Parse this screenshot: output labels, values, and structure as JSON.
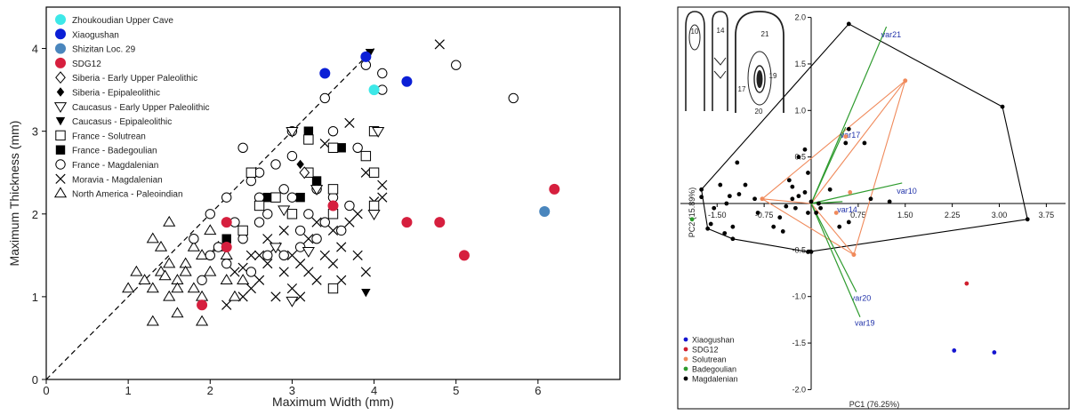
{
  "chart_data": [
    {
      "type": "scatter",
      "xlabel": "Maximum Width (mm)",
      "ylabel": "Maximum Thickness (mm)",
      "xlim": [
        0,
        7
      ],
      "ylim": [
        0,
        4.5
      ],
      "xticks": [
        0,
        1,
        2,
        3,
        4,
        5,
        6
      ],
      "yticks": [
        0,
        1,
        2,
        3,
        4
      ],
      "grid": false,
      "legend_position": "top-left",
      "reference_line": {
        "style": "dashed",
        "x": [
          0,
          4
        ],
        "y": [
          0,
          4
        ]
      },
      "series": [
        {
          "name": "Zhoukoudian Upper Cave",
          "marker": "circle-filled",
          "color": "#3de8e8",
          "points": [
            [
              4.0,
              3.5
            ]
          ]
        },
        {
          "name": "Xiaogushan",
          "marker": "circle-filled",
          "color": "#0b1fd6",
          "points": [
            [
              3.4,
              3.7
            ],
            [
              3.9,
              3.9
            ],
            [
              4.4,
              3.6
            ]
          ]
        },
        {
          "name": "Shizitan Loc. 29",
          "marker": "circle-filled",
          "color": "#4a86bd",
          "points": [
            [
              6.08,
              2.03
            ]
          ]
        },
        {
          "name": "SDG12",
          "marker": "circle-filled",
          "color": "#d61f3e",
          "points": [
            [
              1.9,
              0.9
            ],
            [
              2.2,
              1.9
            ],
            [
              2.2,
              1.6
            ],
            [
              3.5,
              2.1
            ],
            [
              4.4,
              1.9
            ],
            [
              4.8,
              1.9
            ],
            [
              5.1,
              1.5
            ],
            [
              6.2,
              2.3
            ]
          ]
        },
        {
          "name": "Siberia - Early Upper Paleolithic",
          "marker": "diamond-open",
          "color": "#000000",
          "points": [
            [
              3.15,
              2.5
            ]
          ]
        },
        {
          "name": "Siberia - Epipaleolithic",
          "marker": "diamond-filled",
          "color": "#000000",
          "points": [
            [
              3.1,
              2.6
            ]
          ]
        },
        {
          "name": "Caucasus - Early Upper Paleolithic",
          "marker": "triangle-down-open",
          "color": "#000000",
          "points": [
            [
              3.0,
              3.0
            ],
            [
              3.0,
              0.95
            ],
            [
              2.8,
              1.6
            ],
            [
              2.9,
              2.05
            ],
            [
              3.2,
              1.55
            ],
            [
              4.0,
              2.0
            ],
            [
              4.05,
              3.0
            ],
            [
              3.3,
              2.3
            ]
          ]
        },
        {
          "name": "Caucasus - Epipaleolithic",
          "marker": "triangle-down-filled",
          "color": "#000000",
          "points": [
            [
              3.95,
              3.95
            ],
            [
              3.9,
              1.05
            ]
          ]
        },
        {
          "name": "France - Solutrean",
          "marker": "square-open",
          "color": "#000000",
          "points": [
            [
              2.5,
              2.5
            ],
            [
              2.8,
              2.2
            ],
            [
              3.0,
              2.0
            ],
            [
              3.2,
              2.5
            ],
            [
              3.5,
              2.3
            ],
            [
              3.5,
              2.0
            ],
            [
              3.5,
              1.1
            ],
            [
              4.0,
              2.5
            ],
            [
              4.0,
              2.1
            ],
            [
              3.9,
              2.7
            ],
            [
              2.6,
              2.1
            ],
            [
              2.4,
              1.8
            ],
            [
              3.2,
              2.9
            ],
            [
              3.5,
              2.8
            ],
            [
              4.0,
              3.0
            ]
          ]
        },
        {
          "name": "France - Badegoulian",
          "marker": "square-filled",
          "color": "#000000",
          "points": [
            [
              2.2,
              1.7
            ],
            [
              2.7,
              2.2
            ],
            [
              3.1,
              2.2
            ],
            [
              3.2,
              3.0
            ],
            [
              3.3,
              2.4
            ],
            [
              3.6,
              2.8
            ],
            [
              3.5,
              2.0
            ]
          ]
        },
        {
          "name": "France - Magdalenian",
          "marker": "circle-open",
          "color": "#000000",
          "points": [
            [
              1.8,
              1.7
            ],
            [
              2.0,
              2.0
            ],
            [
              2.1,
              1.6
            ],
            [
              2.2,
              2.2
            ],
            [
              2.3,
              1.9
            ],
            [
              2.4,
              1.7
            ],
            [
              2.5,
              2.4
            ],
            [
              2.6,
              2.2
            ],
            [
              2.7,
              2.0
            ],
            [
              2.8,
              2.6
            ],
            [
              2.9,
              1.5
            ],
            [
              3.0,
              2.2
            ],
            [
              3.1,
              1.8
            ],
            [
              3.2,
              2.0
            ],
            [
              3.3,
              1.7
            ],
            [
              3.4,
              1.9
            ],
            [
              3.5,
              2.2
            ],
            [
              3.6,
              1.8
            ],
            [
              3.7,
              2.1
            ],
            [
              2.4,
              2.8
            ],
            [
              2.6,
              2.5
            ],
            [
              2.7,
              1.5
            ],
            [
              2.9,
              2.3
            ],
            [
              3.0,
              3.0
            ],
            [
              3.1,
              1.6
            ],
            [
              3.3,
              2.3
            ],
            [
              3.5,
              3.0
            ],
            [
              3.9,
              3.8
            ],
            [
              4.1,
              3.7
            ],
            [
              4.1,
              3.5
            ],
            [
              5.0,
              3.8
            ],
            [
              5.7,
              3.4
            ],
            [
              3.4,
              3.4
            ],
            [
              3.0,
              2.7
            ],
            [
              2.2,
              1.4
            ],
            [
              2.5,
              1.3
            ],
            [
              2.0,
              1.5
            ],
            [
              1.9,
              1.2
            ],
            [
              3.8,
              2.8
            ],
            [
              2.6,
              1.9
            ]
          ]
        },
        {
          "name": "Moravia - Magdalenian",
          "marker": "x",
          "color": "#000000",
          "points": [
            [
              2.3,
              1.3
            ],
            [
              2.5,
              1.5
            ],
            [
              2.6,
              1.2
            ],
            [
              2.7,
              1.4
            ],
            [
              2.8,
              1.6
            ],
            [
              2.9,
              1.3
            ],
            [
              3.0,
              1.5
            ],
            [
              3.1,
              1.4
            ],
            [
              3.2,
              1.7
            ],
            [
              3.3,
              1.2
            ],
            [
              3.4,
              1.5
            ],
            [
              3.5,
              1.8
            ],
            [
              3.6,
              1.6
            ],
            [
              3.7,
              1.9
            ],
            [
              3.8,
              2.0
            ],
            [
              3.4,
              2.85
            ],
            [
              3.7,
              3.1
            ],
            [
              4.1,
              2.35
            ],
            [
              4.0,
              2.15
            ],
            [
              4.1,
              2.2
            ],
            [
              3.9,
              1.3
            ],
            [
              4.8,
              4.05
            ],
            [
              2.4,
              1.0
            ],
            [
              2.2,
              0.9
            ],
            [
              2.5,
              1.1
            ],
            [
              2.8,
              1.0
            ],
            [
              3.0,
              1.1
            ],
            [
              3.2,
              1.3
            ],
            [
              3.5,
              1.4
            ],
            [
              3.6,
              1.2
            ],
            [
              2.6,
              1.5
            ],
            [
              2.7,
              1.7
            ],
            [
              2.9,
              1.8
            ],
            [
              3.3,
              1.9
            ],
            [
              3.8,
              1.5
            ],
            [
              3.9,
              2.5
            ],
            [
              3.1,
              1.0
            ],
            [
              2.4,
              1.35
            ]
          ]
        },
        {
          "name": "North America - Paleoindian",
          "marker": "triangle-up-open",
          "color": "#000000",
          "points": [
            [
              1.0,
              1.1
            ],
            [
              1.2,
              1.2
            ],
            [
              1.3,
              1.1
            ],
            [
              1.4,
              1.3
            ],
            [
              1.5,
              1.0
            ],
            [
              1.6,
              1.2
            ],
            [
              1.7,
              1.4
            ],
            [
              1.8,
              1.1
            ],
            [
              1.9,
              1.5
            ],
            [
              2.0,
              1.3
            ],
            [
              2.1,
              1.6
            ],
            [
              2.2,
              1.2
            ],
            [
              1.4,
              1.6
            ],
            [
              1.5,
              1.4
            ],
            [
              1.6,
              0.8
            ],
            [
              1.3,
              0.7
            ],
            [
              1.9,
              0.7
            ],
            [
              1.1,
              1.3
            ],
            [
              1.7,
              1.3
            ],
            [
              1.8,
              1.6
            ],
            [
              2.0,
              1.8
            ],
            [
              1.5,
              1.9
            ],
            [
              1.3,
              1.7
            ],
            [
              2.3,
              1.0
            ],
            [
              2.2,
              1.5
            ],
            [
              2.4,
              1.2
            ],
            [
              1.9,
              1.0
            ],
            [
              1.6,
              1.1
            ],
            [
              1.45,
              1.25
            ]
          ]
        }
      ]
    },
    {
      "type": "scatter",
      "xlabel": "PC1 (76.25%)",
      "ylabel": "PC2 (15.89%)",
      "xlim": [
        -2.5,
        4.5
      ],
      "ylim": [
        -2.0,
        2.0
      ],
      "xticks": [
        "-1.50",
        "-0.75",
        "0.75",
        "1.50",
        "2.25",
        "3.00",
        "3.75"
      ],
      "yticks": [
        "2.0",
        "1.5",
        "1.0",
        "0.5",
        "-0.5",
        "-1.0",
        "-1.5",
        "-2.0"
      ],
      "grid": false,
      "legend_position": "bottom-left",
      "series": [
        {
          "name": "Xiaogushan",
          "color": "#1515d0",
          "points": [
            [
              2.28,
              -1.58
            ],
            [
              2.92,
              -1.6
            ]
          ]
        },
        {
          "name": "SDG12",
          "color": "#d01f2e",
          "points": [
            [
              2.48,
              -0.86
            ]
          ]
        },
        {
          "name": "Solutrean",
          "color": "#f08a5b",
          "points": [
            [
              1.5,
              1.32
            ],
            [
              -0.78,
              0.05
            ],
            [
              0.62,
              0.12
            ],
            [
              0.4,
              -0.1
            ],
            [
              0.68,
              -0.55
            ],
            [
              0.55,
              0.72
            ]
          ]
        },
        {
          "name": "Badegoulian",
          "color": "#2e9b2e",
          "points": [
            [
              -1.9,
              -0.17
            ]
          ]
        },
        {
          "name": "Magdalenian",
          "color": "#000000",
          "points": [
            [
              -1.75,
              0.07
            ],
            [
              -1.45,
              0.2
            ],
            [
              -1.55,
              -0.05
            ],
            [
              -1.3,
              0.08
            ],
            [
              -1.15,
              0.1
            ],
            [
              -1.05,
              0.2
            ],
            [
              -1.35,
              0.0
            ],
            [
              -1.6,
              -0.22
            ],
            [
              -1.38,
              -0.32
            ],
            [
              -0.9,
              0.05
            ],
            [
              -0.6,
              -0.25
            ],
            [
              -0.5,
              -0.15
            ],
            [
              -0.45,
              -0.3
            ],
            [
              -0.35,
              0.25
            ],
            [
              -0.3,
              0.05
            ],
            [
              -0.25,
              -0.05
            ],
            [
              -0.2,
              0.08
            ],
            [
              -0.1,
              0.12
            ],
            [
              -0.05,
              -0.1
            ],
            [
              0.0,
              0.02
            ],
            [
              -0.2,
              0.5
            ],
            [
              -0.1,
              0.58
            ],
            [
              -0.05,
              0.33
            ],
            [
              -0.4,
              -0.03
            ],
            [
              0.0,
              -0.52
            ],
            [
              0.15,
              -0.05
            ],
            [
              0.3,
              0.15
            ],
            [
              0.45,
              -0.25
            ],
            [
              0.55,
              0.65
            ],
            [
              0.6,
              0.8
            ],
            [
              0.85,
              0.65
            ],
            [
              0.95,
              0.05
            ],
            [
              0.6,
              -0.2
            ],
            [
              1.25,
              0.02
            ],
            [
              0.08,
              -0.1
            ],
            [
              0.12,
              0.0
            ],
            [
              -1.18,
              0.44
            ],
            [
              -0.3,
              0.18
            ],
            [
              -1.25,
              -0.25
            ],
            [
              -0.85,
              -0.1
            ]
          ]
        }
      ],
      "hulls": [
        {
          "color": "#000000",
          "vertices": [
            [
              -1.75,
              0.15
            ],
            [
              0.6,
              1.93
            ],
            [
              3.05,
              1.04
            ],
            [
              3.45,
              -0.17
            ],
            [
              -0.05,
              -0.52
            ],
            [
              -1.25,
              -0.38
            ],
            [
              -1.65,
              -0.27
            ]
          ]
        },
        {
          "color": "#f08a5b",
          "vertices": [
            [
              -0.78,
              0.05
            ],
            [
              1.5,
              1.32
            ],
            [
              0.68,
              -0.55
            ]
          ]
        }
      ],
      "vectors": [
        {
          "name": "var21",
          "tip": [
            1.2,
            1.9
          ]
        },
        {
          "name": "var17",
          "tip": [
            0.55,
            0.82
          ]
        },
        {
          "name": "var10",
          "tip": [
            1.45,
            0.22
          ]
        },
        {
          "name": "var14",
          "tip": [
            0.5,
            0.02
          ]
        },
        {
          "name": "var20",
          "tip": [
            0.72,
            -0.95
          ]
        },
        {
          "name": "var19",
          "tip": [
            0.78,
            -1.22
          ]
        }
      ],
      "vector_color": "#2e9b2e",
      "inset_labels": [
        "10",
        "14",
        "21",
        "19",
        "17",
        "20"
      ]
    }
  ]
}
